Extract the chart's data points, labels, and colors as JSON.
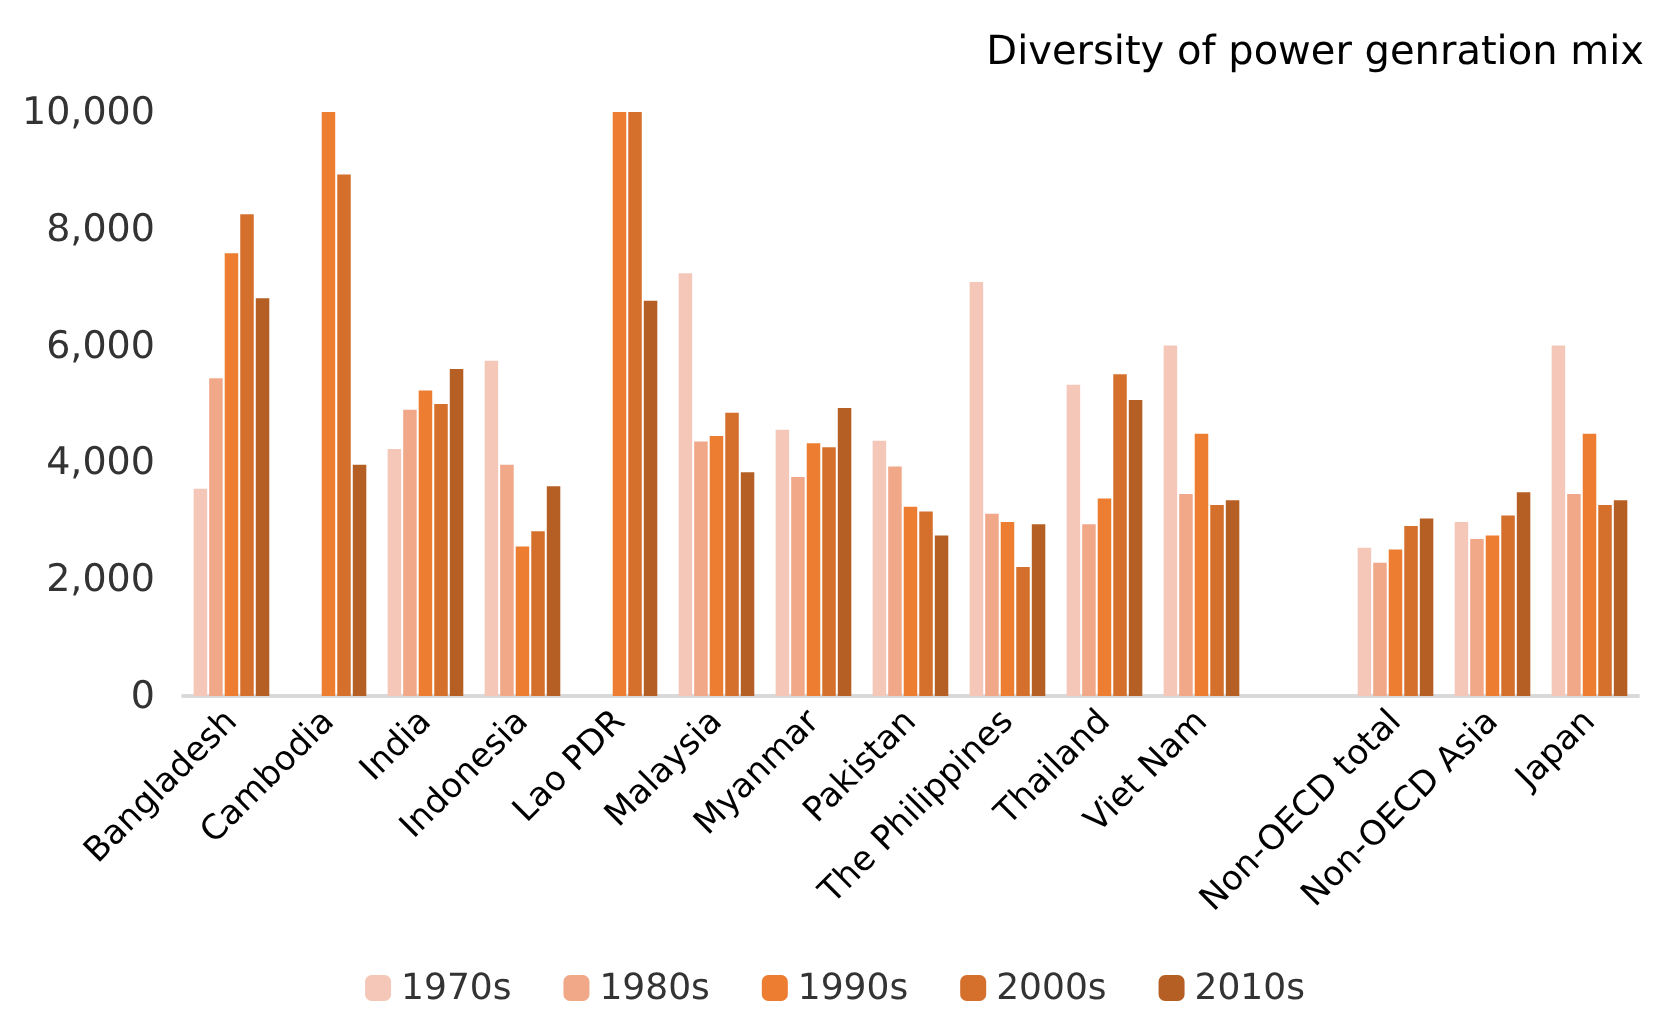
{
  "chart_data": {
    "type": "bar",
    "title": "Diversity of power genration mix",
    "categories": [
      "Bangladesh",
      "Cambodia",
      "India",
      "Indonesia",
      "Lao PDR",
      "Malaysia",
      "Myanmar",
      "Pakistan",
      "The Philippines",
      "Thailand",
      "Viet Nam",
      null,
      "Non-OECD total",
      "Non-OECD Asia",
      "Japan"
    ],
    "series": [
      {
        "name": "1970s",
        "color": "#f4c7b8",
        "values": [
          3550,
          null,
          4230,
          5740,
          null,
          7240,
          4560,
          4370,
          7090,
          5330,
          6000,
          null,
          2540,
          2980,
          6000
        ]
      },
      {
        "name": "1980s",
        "color": "#f0a888",
        "values": [
          5440,
          null,
          4900,
          3960,
          null,
          4360,
          3750,
          3930,
          3120,
          2940,
          3460,
          null,
          2280,
          2690,
          3460
        ]
      },
      {
        "name": "1990s",
        "color": "#ed7d31",
        "values": [
          7580,
          10000,
          5230,
          2560,
          10000,
          4450,
          4330,
          3240,
          2980,
          3380,
          4490,
          null,
          2510,
          2750,
          4490
        ]
      },
      {
        "name": "2000s",
        "color": "#d4702c",
        "values": [
          8250,
          8930,
          5000,
          2820,
          10000,
          4850,
          4260,
          3160,
          2210,
          5510,
          3270,
          null,
          2910,
          3090,
          3270
        ]
      },
      {
        "name": "2010s",
        "color": "#b55f25",
        "values": [
          6810,
          3960,
          5600,
          3590,
          6770,
          3830,
          4930,
          2750,
          2940,
          5070,
          3350,
          null,
          3040,
          3490,
          3350
        ]
      }
    ],
    "ylim": [
      0,
      10000
    ],
    "yticks": [
      0,
      {
        "value": 2000,
        "label": "2,000"
      },
      {
        "value": 4000,
        "label": "4,000"
      },
      {
        "value": 6000,
        "label": "6,000"
      },
      {
        "value": 8000,
        "label": "8,000"
      },
      {
        "value": 10000,
        "label": "10,000"
      }
    ],
    "grid": false,
    "legend": "bottom"
  }
}
